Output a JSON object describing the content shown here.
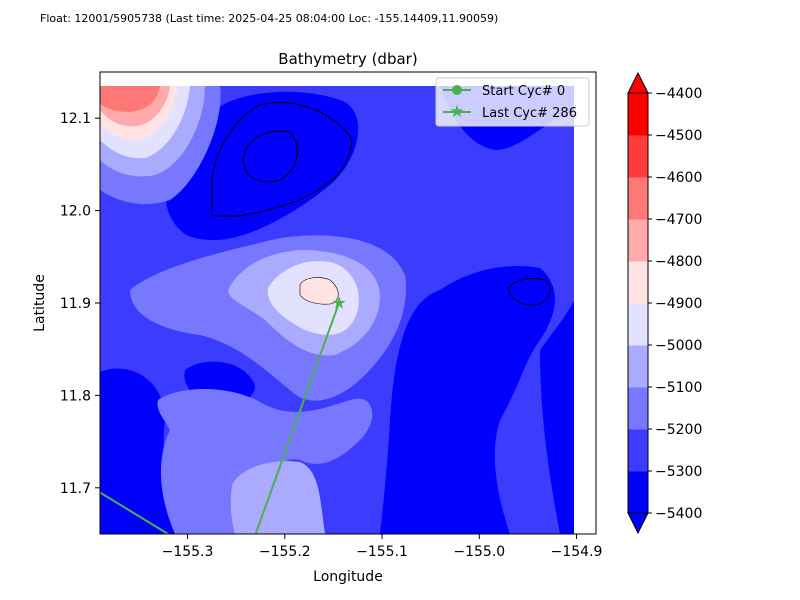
{
  "header": {
    "float_info": "Float: 12001/5905738 (Last time: 2025-04-25 08:04:00   Loc: -155.14409,11.90059)"
  },
  "chart_data": {
    "type": "contour",
    "title": "Bathymetry (dbar)",
    "xlabel": "Longitude",
    "ylabel": "Latitude",
    "xlim": [
      -155.39,
      -154.88
    ],
    "ylim": [
      11.65,
      12.15
    ],
    "xticks": [
      -155.3,
      -155.2,
      -155.1,
      -155.0,
      -154.9
    ],
    "xtick_labels": [
      "−155.3",
      "−155.2",
      "−155.1",
      "−155.0",
      "−154.9"
    ],
    "yticks": [
      11.7,
      11.8,
      11.9,
      12.0,
      12.1
    ],
    "ytick_labels": [
      "11.7",
      "11.8",
      "11.9",
      "12.0",
      "12.1"
    ],
    "levels": [
      -5400,
      -5300,
      -5200,
      -5100,
      -5000,
      -4900,
      -4800,
      -4700,
      -4600,
      -4500,
      -4400
    ],
    "colorbar_ticks": [
      -4400,
      -4500,
      -4600,
      -4700,
      -4800,
      -4900,
      -5000,
      -5100,
      -5200,
      -5300,
      -5400
    ],
    "colorbar_tick_labels": [
      "−4400",
      "−4500",
      "−4600",
      "−4700",
      "−4800",
      "−4900",
      "−5000",
      "−5100",
      "−5200",
      "−5300",
      "−5400"
    ],
    "colors": [
      "#0000ff",
      "#3c3cff",
      "#7878ff",
      "#aaaaff",
      "#e2e2ff",
      "#ffe2e2",
      "#ffaaaa",
      "#ff7878",
      "#ff3c3c",
      "#ff0000"
    ],
    "trajectory": {
      "color": "#4caf50",
      "segments": [
        {
          "x": [
            -155.39,
            -155.32
          ],
          "y": [
            11.695,
            11.65
          ]
        },
        {
          "x": [
            -155.23,
            -155.14409
          ],
          "y": [
            11.65,
            11.90059
          ]
        }
      ],
      "last_point": {
        "x": -155.14409,
        "y": 11.90059
      }
    },
    "legend": {
      "placement": "top-right",
      "entries": [
        {
          "label": "Start Cyc# 0",
          "marker": "circle"
        },
        {
          "label": "Last Cyc# 286",
          "marker": "star"
        }
      ]
    }
  }
}
